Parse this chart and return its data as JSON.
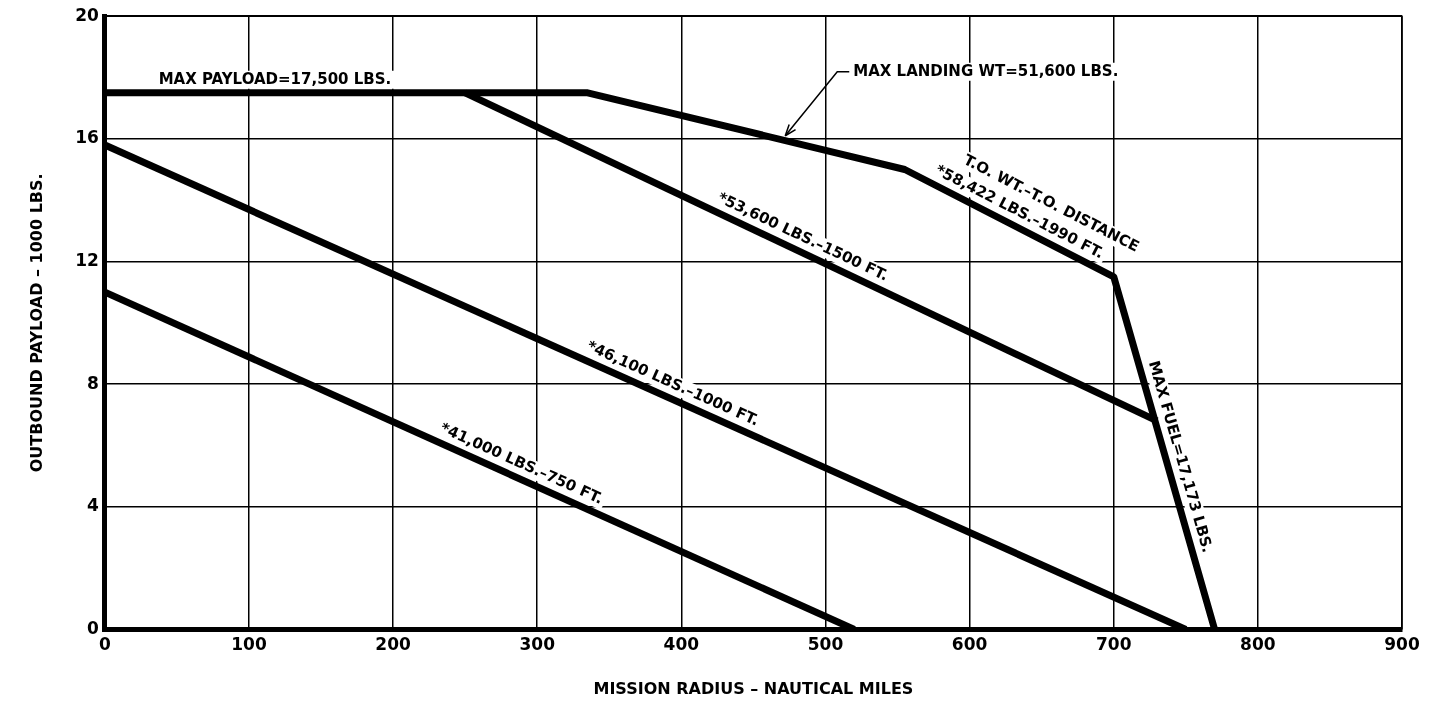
{
  "chart_data": {
    "type": "line",
    "xlabel": "MISSION RADIUS – NAUTICAL MILES",
    "ylabel": "OUTBOUND PAYLOAD – 1000 LBS.",
    "xlim": [
      0,
      900
    ],
    "xticks": [
      0,
      100,
      200,
      300,
      400,
      500,
      600,
      700,
      800,
      900
    ],
    "ylim": [
      0,
      20
    ],
    "yticks": [
      0,
      4,
      8,
      12,
      16,
      20
    ],
    "grid": true,
    "legend": false,
    "marker": "none",
    "line_style": "solid",
    "series": [
      {
        "color": "#000000",
        "x": [
          0,
          335,
          555,
          700,
          770
        ],
        "values": [
          17.5,
          17.5,
          15,
          11.5,
          0
        ]
      },
      {
        "color": "#000000",
        "x": [
          250,
          730
        ],
        "values": [
          17.5,
          6.8
        ]
      },
      {
        "color": "#000000",
        "x": [
          0,
          750
        ],
        "values": [
          15.8,
          0
        ]
      },
      {
        "color": "#000000",
        "x": [
          0,
          520
        ],
        "values": [
          11,
          0
        ]
      }
    ],
    "annotations": [
      {
        "text": "MAX PAYLOAD=17,500 LBS.",
        "x": 118,
        "y": 17.5
      },
      {
        "text": "MAX LANDING WT=51,600 LBS.",
        "x": 470,
        "y": 15.97
      },
      {
        "text": "T.O. WT.–T.O. DISTANCE",
        "x": 645,
        "y": 12.83
      },
      {
        "text": "*58,422 LBS.–1990 FT.",
        "x": 630,
        "y": 13.19
      },
      {
        "text": "*53,600 LBS.–1500 FT.",
        "x": 480,
        "y": 12.37
      },
      {
        "text": "*46,100 LBS.–1000 FT.",
        "x": 390,
        "y": 7.58
      },
      {
        "text": "*41,000 LBS.–750 FT.",
        "x": 285,
        "y": 4.97
      },
      {
        "text": "MAX FUEL=17,173 LBS.",
        "x": 736.5,
        "y": 5.5
      }
    ]
  }
}
